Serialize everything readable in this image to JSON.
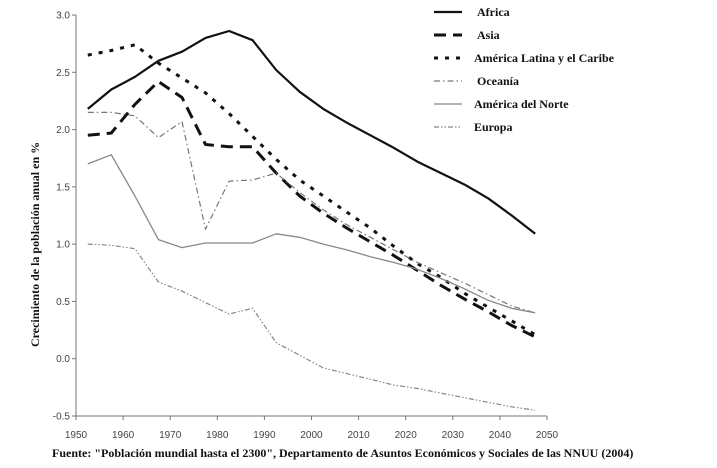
{
  "chart_data": {
    "type": "line",
    "title": "",
    "xlabel": "",
    "ylabel": "Crecimiento de la población anual en %",
    "xlim": [
      1950,
      2050
    ],
    "ylim": [
      -0.5,
      3.0
    ],
    "xticks": [
      "1950",
      "1960",
      "1970",
      "1980",
      "1990",
      "2000",
      "2010",
      "2020",
      "2030",
      "2040",
      "2050"
    ],
    "yticks": [
      "3.0",
      "2.5",
      "2.0",
      "1.5",
      "1.0",
      "0.5",
      "0.0",
      "-0.5"
    ],
    "grid": false,
    "legend_position": "top-right",
    "series": [
      {
        "name": "Africa",
        "style": "solid-thick",
        "x": [
          1952.5,
          1957.5,
          1962.5,
          1967.5,
          1972.5,
          1977.5,
          1982.5,
          1987.5,
          1992.5,
          1997.5,
          2002.5,
          2007.5,
          2012.5,
          2017.5,
          2022.5,
          2027.5,
          2032.5,
          2037.5,
          2042.5,
          2047.5
        ],
        "y": [
          2.18,
          2.35,
          2.46,
          2.6,
          2.68,
          2.8,
          2.86,
          2.78,
          2.52,
          2.33,
          2.18,
          2.06,
          1.95,
          1.84,
          1.72,
          1.62,
          1.52,
          1.4,
          1.25,
          1.09
        ]
      },
      {
        "name": "Asia",
        "style": "long-dash",
        "x": [
          1952.5,
          1957.5,
          1962.5,
          1967.5,
          1972.5,
          1977.5,
          1982.5,
          1987.5,
          1992.5,
          1997.5,
          2002.5,
          2007.5,
          2012.5,
          2017.5,
          2022.5,
          2027.5,
          2032.5,
          2037.5,
          2042.5,
          2047.5
        ],
        "y": [
          1.95,
          1.97,
          2.22,
          2.42,
          2.28,
          1.87,
          1.85,
          1.85,
          1.62,
          1.42,
          1.27,
          1.14,
          1.02,
          0.9,
          0.77,
          0.64,
          0.52,
          0.41,
          0.29,
          0.19
        ]
      },
      {
        "name": "América Latina y el Caribe",
        "style": "dotted-thick",
        "x": [
          1952.5,
          1957.5,
          1962.5,
          1967.5,
          1972.5,
          1977.5,
          1982.5,
          1987.5,
          1992.5,
          1997.5,
          2002.5,
          2007.5,
          2012.5,
          2017.5,
          2022.5,
          2027.5,
          2032.5,
          2037.5,
          2042.5,
          2047.5
        ],
        "y": [
          2.65,
          2.69,
          2.74,
          2.58,
          2.45,
          2.32,
          2.14,
          1.94,
          1.74,
          1.56,
          1.42,
          1.28,
          1.14,
          0.98,
          0.83,
          0.71,
          0.57,
          0.45,
          0.33,
          0.21
        ]
      },
      {
        "name": "Oceanía",
        "style": "dash-dot",
        "x": [
          1952.5,
          1957.5,
          1962.5,
          1967.5,
          1972.5,
          1977.5,
          1982.5,
          1987.5,
          1992.5,
          1997.5,
          2002.5,
          2007.5,
          2012.5,
          2017.5,
          2022.5,
          2027.5,
          2032.5,
          2037.5,
          2042.5,
          2047.5
        ],
        "y": [
          2.15,
          2.15,
          2.12,
          1.93,
          2.07,
          1.13,
          1.55,
          1.56,
          1.62,
          1.45,
          1.3,
          1.17,
          1.06,
          0.95,
          0.84,
          0.75,
          0.66,
          0.56,
          0.46,
          0.4
        ]
      },
      {
        "name": "América del Norte",
        "style": "thin-solid",
        "x": [
          1952.5,
          1957.5,
          1962.5,
          1967.5,
          1972.5,
          1977.5,
          1982.5,
          1987.5,
          1992.5,
          1997.5,
          2002.5,
          2007.5,
          2012.5,
          2017.5,
          2022.5,
          2027.5,
          2032.5,
          2037.5,
          2042.5,
          2047.5
        ],
        "y": [
          1.7,
          1.78,
          1.42,
          1.04,
          0.97,
          1.01,
          1.01,
          1.01,
          1.09,
          1.06,
          1.0,
          0.95,
          0.89,
          0.84,
          0.78,
          0.7,
          0.61,
          0.51,
          0.44,
          0.4
        ]
      },
      {
        "name": "Europa",
        "style": "dash-dot-dot",
        "x": [
          1952.5,
          1957.5,
          1962.5,
          1967.5,
          1972.5,
          1977.5,
          1982.5,
          1987.5,
          1992.5,
          1997.5,
          2002.5,
          2007.5,
          2012.5,
          2017.5,
          2022.5,
          2027.5,
          2032.5,
          2037.5,
          2042.5,
          2047.5
        ],
        "y": [
          1.0,
          0.99,
          0.96,
          0.67,
          0.59,
          0.49,
          0.39,
          0.44,
          0.14,
          0.03,
          -0.08,
          -0.13,
          -0.18,
          -0.23,
          -0.26,
          -0.3,
          -0.34,
          -0.38,
          -0.42,
          -0.45
        ]
      }
    ]
  },
  "source_text": "Fuente: \"Población mundial hasta el 2300\", Departamento de Asuntos Económicos y Sociales de las NNUU (2004)"
}
